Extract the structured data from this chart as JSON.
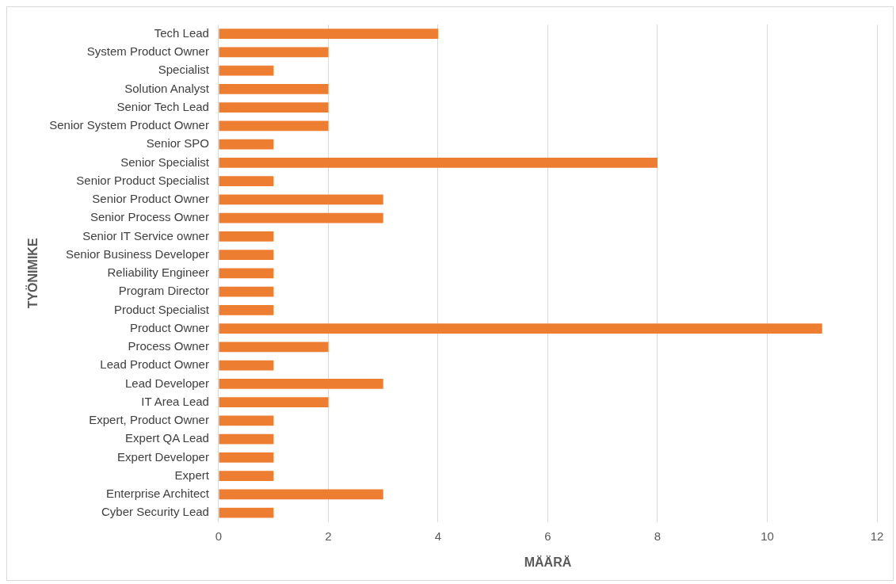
{
  "chart_data": {
    "type": "bar",
    "orientation": "horizontal",
    "xlabel": "MÄÄRÄ",
    "ylabel": "TYÖNIMIKE",
    "categories": [
      "Tech Lead",
      "System Product Owner",
      "Specialist",
      "Solution Analyst",
      "Senior Tech Lead",
      "Senior System Product Owner",
      "Senior SPO",
      "Senior Specialist",
      "Senior Product Specialist",
      "Senior Product Owner",
      "Senior Process Owner",
      "Senior IT Service owner",
      "Senior Business Developer",
      "Reliability Engineer",
      "Program Director",
      "Product Specialist",
      "Product Owner",
      "Process Owner",
      "Lead Product Owner",
      "Lead Developer",
      "IT Area Lead",
      "Expert, Product Owner",
      "Expert QA Lead",
      "Expert Developer",
      "Expert",
      "Enterprise Architect",
      "Cyber Security Lead"
    ],
    "values": [
      4,
      2,
      1,
      2,
      2,
      2,
      1,
      8,
      1,
      3,
      3,
      1,
      1,
      1,
      1,
      1,
      11,
      2,
      1,
      3,
      2,
      1,
      1,
      1,
      1,
      3,
      1
    ],
    "color": "#ed7d31",
    "xlim": [
      0,
      12
    ],
    "xticks": [
      0,
      2,
      4,
      6,
      8,
      10,
      12
    ],
    "grid": "x",
    "legend": false
  }
}
